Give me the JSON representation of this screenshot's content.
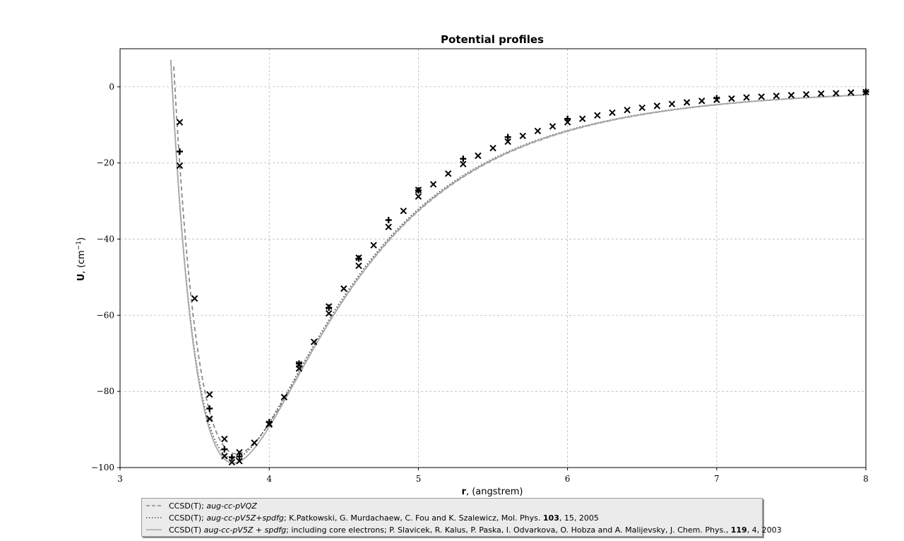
{
  "chart_data": {
    "type": "line",
    "title": "Potential profiles",
    "xlabel_bold": "r",
    "xlabel_rest": ", (angstrem)",
    "ylabel_bold": "U",
    "ylabel_rest": ", (cm",
    "ylabel_sup": "−1",
    "ylabel_close": ")",
    "xlim": [
      3,
      8
    ],
    "ylim": [
      -100,
      10
    ],
    "xticks": [
      3,
      4,
      5,
      6,
      7,
      8
    ],
    "xtick_labels": [
      "3",
      "4",
      "5",
      "6",
      "7",
      "8"
    ],
    "yticks": [
      0,
      -20,
      -40,
      -60,
      -80,
      -100
    ],
    "ytick_labels": [
      "0",
      "−20",
      "−40",
      "−60",
      "−80",
      "−100"
    ],
    "grid": true,
    "legend_position": "below",
    "series": [
      {
        "name": "CCSD(T); aug-cc-pVQZ",
        "style": "dashed",
        "color": "#8a8a8a",
        "marker": "x",
        "x": [
          3.4,
          3.5,
          3.6,
          3.7,
          3.8,
          3.9,
          4.0,
          4.1,
          4.2,
          4.3,
          4.4,
          4.5,
          4.6,
          4.7,
          4.8,
          4.9,
          5.0,
          5.1,
          5.2,
          5.3,
          5.4,
          5.5,
          5.6,
          5.7,
          5.8,
          5.9,
          6.0,
          6.1,
          6.2,
          6.3,
          6.4,
          6.5,
          6.6,
          6.7,
          6.8,
          6.9,
          7.0,
          7.1,
          7.2,
          7.3,
          7.4,
          7.5,
          7.6,
          7.7,
          7.8,
          7.9,
          8.0
        ],
        "y": [
          -9.3,
          -55.6,
          -80.8,
          -92.5,
          -96.0,
          -93.5,
          -88.7,
          -81.5,
          -74.0,
          -67.0,
          -59.5,
          -53.0,
          -47.0,
          -41.6,
          -36.8,
          -32.6,
          -28.8,
          -25.6,
          -22.8,
          -20.3,
          -18.1,
          -16.1,
          -14.4,
          -12.9,
          -11.6,
          -10.4,
          -9.3,
          -8.4,
          -7.5,
          -6.8,
          -6.1,
          -5.5,
          -5.0,
          -4.5,
          -4.1,
          -3.7,
          -3.4,
          -3.1,
          -2.8,
          -2.6,
          -2.4,
          -2.2,
          -2.0,
          -1.8,
          -1.7,
          -1.5,
          -1.4
        ]
      },
      {
        "name": "CCSD(T); aug-cc-pV5Z+spdfg; K.Patkowski, G. Murdachaew, C. Fou and K. Szalewicz, Mol. Phys. 103, 15, 2005",
        "style": "dotted",
        "color": "#555555",
        "marker": "+",
        "x": [
          3.4,
          3.6,
          3.7,
          3.75,
          3.8,
          4.0,
          4.2,
          4.4,
          4.6,
          4.8,
          5.0,
          5.3,
          5.6,
          6.0,
          7.0,
          8.0
        ],
        "y": [
          -17.0,
          -84.5,
          -95.2,
          -97.3,
          -97.1,
          -88.1,
          -72.7,
          -58.0,
          -45.1,
          -35.0,
          -27.2,
          -18.9,
          -13.2,
          -8.4,
          -3.0,
          -1.3
        ]
      },
      {
        "name": "CCSD(T) aug-cc-pV5Z + spdfg; including core electrons; P. Slavicek, R. Kalus, P. Paska, I. Odvarkova, O. Hobza and A. Malijevsky, J. Chem. Phys., 119, 4, 2003",
        "style": "solid",
        "color": "#a8a8a8",
        "marker": "x",
        "x": [
          3.4,
          3.6,
          3.7,
          3.75,
          3.8,
          4.0,
          4.2,
          4.4,
          4.6,
          5.0
        ],
        "y": [
          -20.7,
          -87.2,
          -97.0,
          -98.6,
          -98.3,
          -88.5,
          -72.9,
          -57.7,
          -44.9,
          -27.1
        ]
      }
    ],
    "legend": [
      {
        "pre": "CCSD(T); ",
        "italic": "aug-cc-pVQZ",
        "post": "",
        "bold": "",
        "post2": ""
      },
      {
        "pre": "CCSD(T); ",
        "italic": "aug-cc-pV5Z+spdfg",
        "post": "; K.Patkowski, G. Murdachaew, C. Fou and K. Szalewicz, Mol. Phys. ",
        "bold": "103",
        "post2": ", 15, 2005"
      },
      {
        "pre": "CCSD(T) ",
        "italic": "aug-cc-pV5Z + spdfg",
        "post": "; including core electrons; P. Slavicek, R. Kalus, P. Paska, I. Odvarkova, O. Hobza and A. Malijevsky, J. Chem. Phys., ",
        "bold": "119",
        "post2": ", 4, 2003"
      }
    ]
  }
}
